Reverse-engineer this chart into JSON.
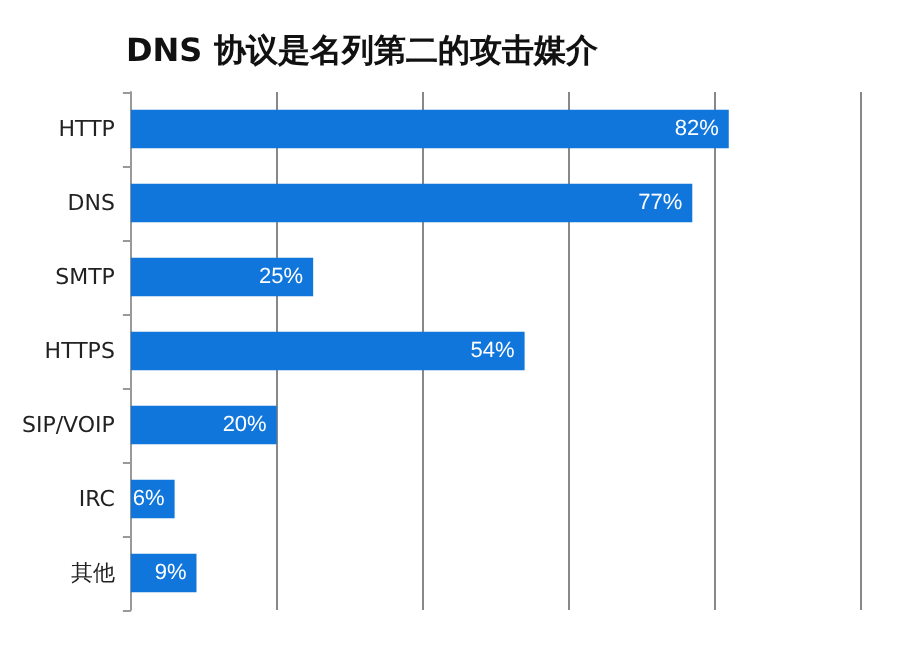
{
  "chart_data": {
    "type": "bar",
    "orientation": "horizontal",
    "title": "DNS 协议是名列第二的攻击媒介",
    "categories": [
      "HTTP",
      "DNS",
      "SMTP",
      "HTTPS",
      "SIP/VOIP",
      "IRC",
      "其他"
    ],
    "values": [
      82,
      77,
      25,
      54,
      20,
      6,
      9
    ],
    "color": "#1176dc",
    "data_labels": true,
    "value_labels": [
      "82%",
      "77%",
      "25%",
      "54%",
      "20%",
      "6%",
      "9%"
    ],
    "xlim": [
      0,
      100
    ],
    "xticks": [
      {
        "value": 0,
        "label": null
      },
      {
        "value": 20,
        "label": null
      },
      {
        "value": 40,
        "label": null
      },
      {
        "value": 60,
        "label": null
      },
      {
        "value": 80,
        "label": null
      },
      {
        "value": 100,
        "label": null
      }
    ],
    "grid": "x",
    "tick_labels": "y"
  }
}
